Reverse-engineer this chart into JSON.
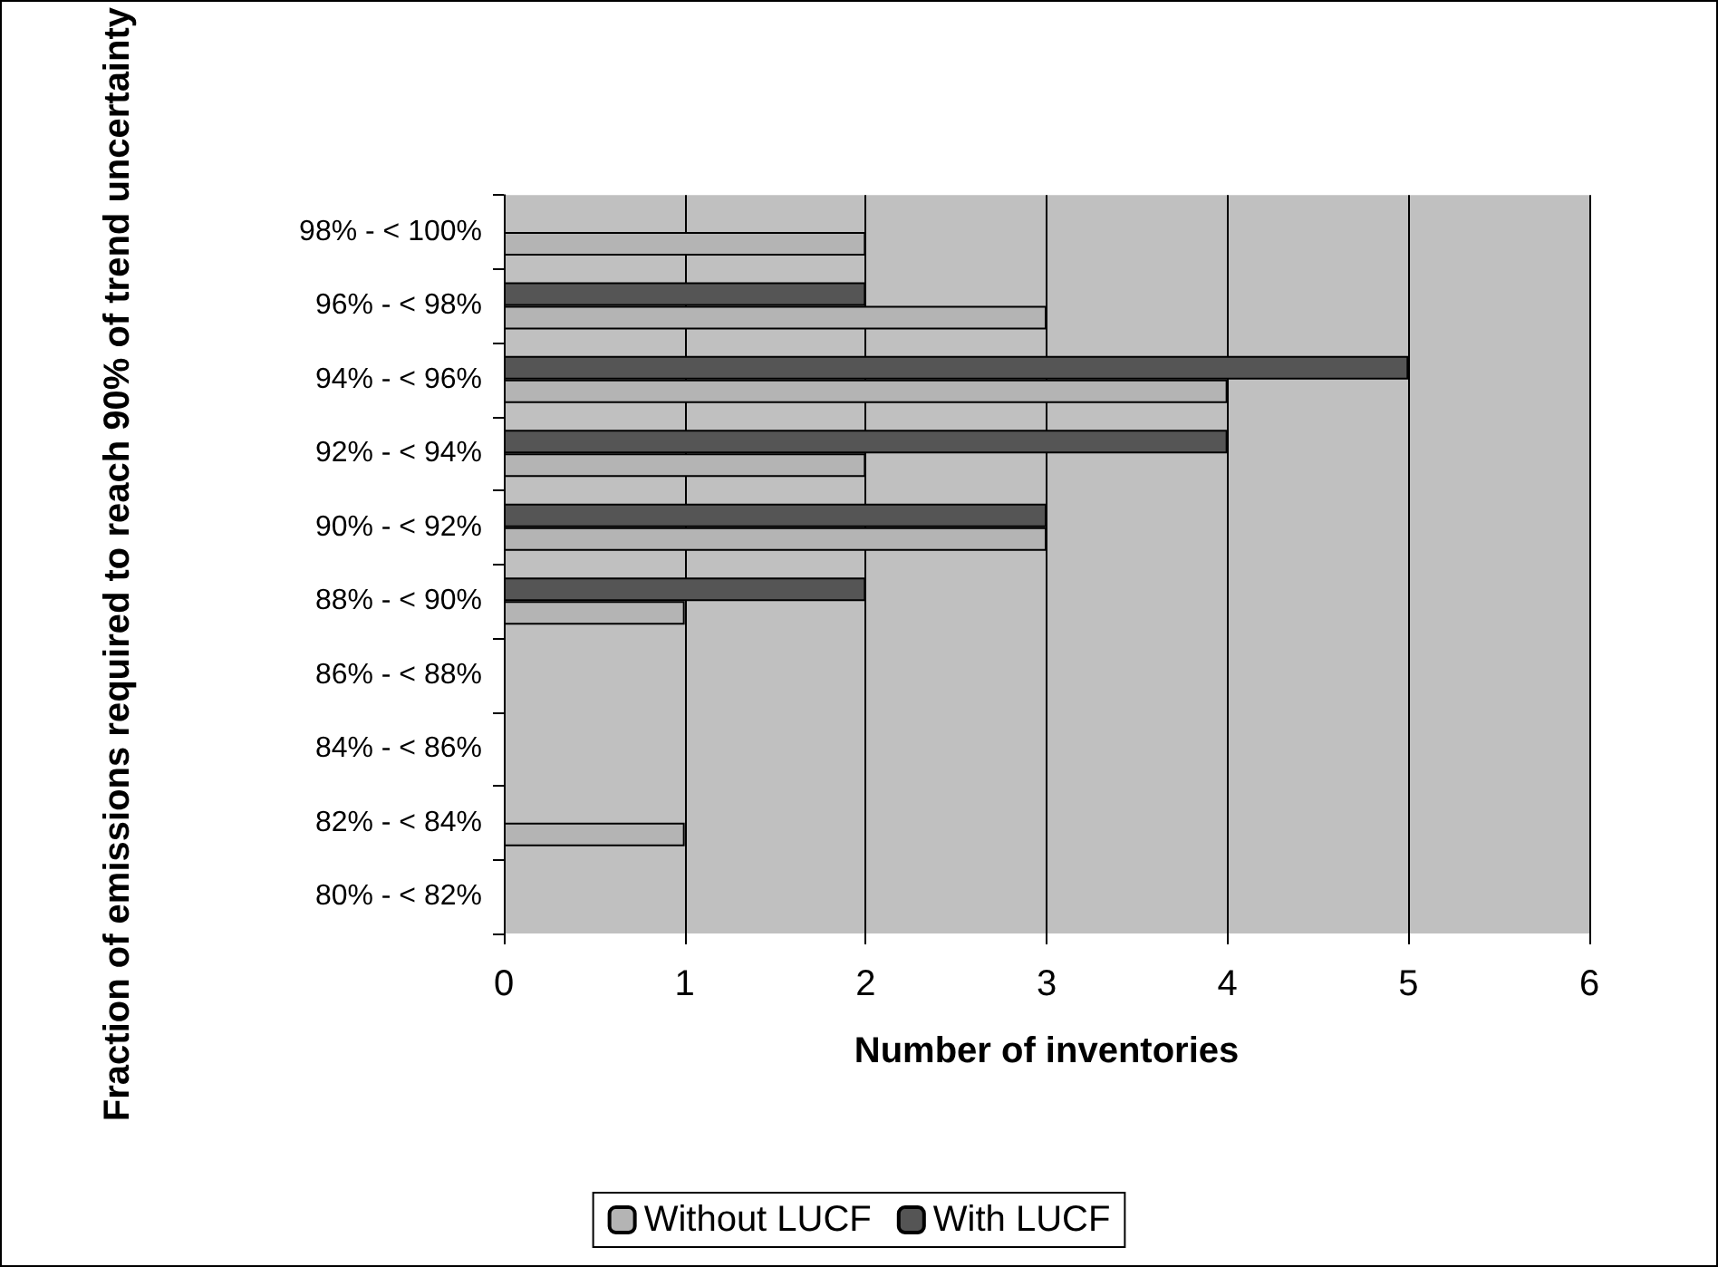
{
  "chart_data": {
    "type": "bar",
    "orientation": "horizontal",
    "xlabel": "Number of inventories",
    "ylabel": "Fraction of emissions required to reach 90% of trend uncertainty",
    "categories": [
      "98% - < 100%",
      "96% - < 98%",
      "94% - < 96%",
      "92% - < 94%",
      "90% - < 92%",
      "88% - < 90%",
      "86% - < 88%",
      "84% - < 86%",
      "82% - < 84%",
      "80% - < 82%"
    ],
    "series": [
      {
        "name": "Without LUCF",
        "color": "#b4b4b4",
        "values": [
          2,
          3,
          4,
          2,
          3,
          1,
          null,
          null,
          1,
          null
        ]
      },
      {
        "name": "With LUCF",
        "color": "#555555",
        "values": [
          null,
          2,
          5,
          4,
          3,
          2,
          null,
          null,
          null,
          null
        ]
      }
    ],
    "xlim": [
      0,
      6
    ],
    "xticks": [
      0,
      1,
      2,
      3,
      4,
      5,
      6
    ],
    "grid": "x",
    "legend": "bottom"
  }
}
